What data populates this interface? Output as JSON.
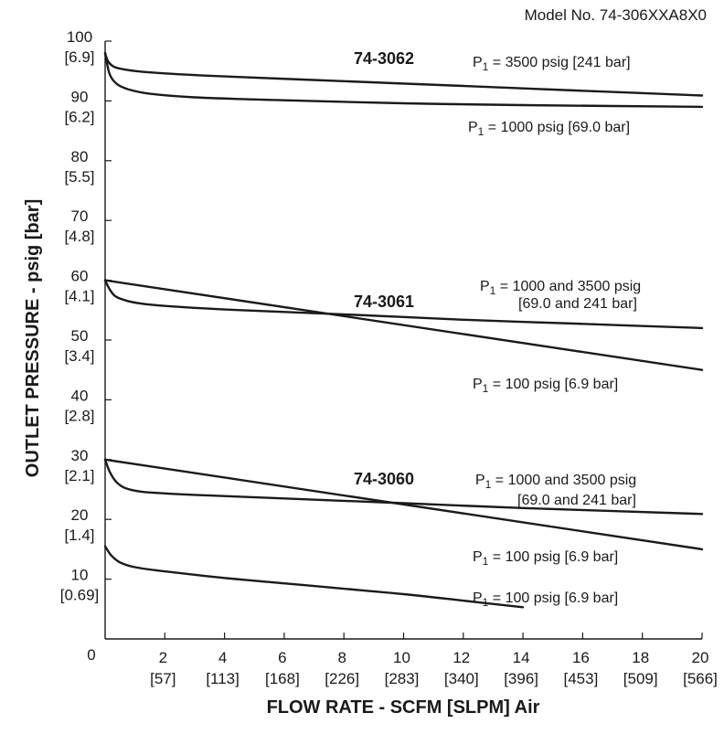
{
  "model_label": "Model No. 74-306XXA8X0",
  "chart_data": {
    "type": "line",
    "xlabel": "FLOW RATE - SCFM [SLPM] Air",
    "ylabel": "OUTLET PRESSURE - psig [bar]",
    "xlim": [
      0,
      20
    ],
    "ylim": [
      0,
      100
    ],
    "grid": false,
    "origin_label": "0",
    "x_ticks": [
      {
        "value": 2,
        "label": "2",
        "sub": "[57]"
      },
      {
        "value": 4,
        "label": "4",
        "sub": "[113]"
      },
      {
        "value": 6,
        "label": "6",
        "sub": "[168]"
      },
      {
        "value": 8,
        "label": "8",
        "sub": "[226]"
      },
      {
        "value": 10,
        "label": "10",
        "sub": "[283]"
      },
      {
        "value": 12,
        "label": "12",
        "sub": "[340]"
      },
      {
        "value": 14,
        "label": "14",
        "sub": "[396]"
      },
      {
        "value": 16,
        "label": "16",
        "sub": "[453]"
      },
      {
        "value": 18,
        "label": "18",
        "sub": "[509]"
      },
      {
        "value": 20,
        "label": "20",
        "sub": "[566]"
      }
    ],
    "y_ticks": [
      {
        "value": 10,
        "label": "10",
        "sub": "[0.69]"
      },
      {
        "value": 20,
        "label": "20",
        "sub": "[1.4]"
      },
      {
        "value": 30,
        "label": "30",
        "sub": "[2.1]"
      },
      {
        "value": 40,
        "label": "40",
        "sub": "[2.8]"
      },
      {
        "value": 50,
        "label": "50",
        "sub": "[3.4]"
      },
      {
        "value": 60,
        "label": "60",
        "sub": "[4.1]"
      },
      {
        "value": 70,
        "label": "70",
        "sub": "[4.8]"
      },
      {
        "value": 80,
        "label": "80",
        "sub": "[5.5]"
      },
      {
        "value": 90,
        "label": "90",
        "sub": "[6.2]"
      },
      {
        "value": 100,
        "label": "100",
        "sub": "[6.9]"
      }
    ],
    "groups": [
      {
        "name": "74-3062"
      },
      {
        "name": "74-3061"
      },
      {
        "name": "74-3060"
      }
    ],
    "series": [
      {
        "group": "74-3062",
        "name": "P1 = 3500 psig [241 bar]",
        "label_lines": [
          {
            "pre": "P",
            "sub": "1",
            "post": " = 3500 psig [241 bar]"
          }
        ],
        "points": [
          [
            0,
            98
          ],
          [
            0.1,
            96.6
          ],
          [
            0.3,
            95.7
          ],
          [
            0.6,
            95.3
          ],
          [
            1,
            95
          ],
          [
            2,
            94.6
          ],
          [
            4,
            94.1
          ],
          [
            8,
            93.3
          ],
          [
            12,
            92.5
          ],
          [
            16,
            91.7
          ],
          [
            20,
            90.9
          ]
        ]
      },
      {
        "group": "74-3062",
        "name": "P1 = 1000 psig [69.0 bar]",
        "label_lines": [
          {
            "pre": "P",
            "sub": "1",
            "post": " = 1000 psig [69.0 bar]"
          }
        ],
        "points": [
          [
            0,
            98
          ],
          [
            0.15,
            94.5
          ],
          [
            0.4,
            92.8
          ],
          [
            0.8,
            91.9
          ],
          [
            1.5,
            91.2
          ],
          [
            3,
            90.6
          ],
          [
            6,
            90.1
          ],
          [
            10,
            89.6
          ],
          [
            14,
            89.3
          ],
          [
            20,
            89
          ]
        ]
      },
      {
        "group": "74-3061",
        "name": "P1 = 1000 and 3500 psig [69.0 and 241 bar]",
        "label_lines": [
          {
            "pre": "P",
            "sub": "1",
            "post": " = 1000 and 3500 psig"
          },
          {
            "pre": "",
            "sub": "",
            "post": "[69.0 and 241 bar]"
          }
        ],
        "points": [
          [
            0,
            60
          ],
          [
            0.15,
            58.5
          ],
          [
            0.35,
            57.3
          ],
          [
            0.7,
            56.6
          ],
          [
            1.2,
            56.1
          ],
          [
            2,
            55.7
          ],
          [
            4,
            55.1
          ],
          [
            8,
            54.3
          ],
          [
            12,
            53.4
          ],
          [
            16,
            52.7
          ],
          [
            20,
            52
          ]
        ]
      },
      {
        "group": "74-3061",
        "name": "P1 = 100 psig [6.9 bar]",
        "label_lines": [
          {
            "pre": "P",
            "sub": "1",
            "post": " = 100 psig [6.9 bar]"
          }
        ],
        "points": [
          [
            0,
            60
          ],
          [
            20,
            45
          ]
        ]
      },
      {
        "group": "74-3060",
        "name": "P1 = 1000 and 3500 psig [69.0 and 241 bar]",
        "label_lines": [
          {
            "pre": "P",
            "sub": "1",
            "post": " = 1000 and 3500 psig"
          },
          {
            "pre": "",
            "sub": "",
            "post": "[69.0 and 241 bar]"
          }
        ],
        "points": [
          [
            0,
            30
          ],
          [
            0.15,
            28
          ],
          [
            0.35,
            26.4
          ],
          [
            0.6,
            25.4
          ],
          [
            1,
            24.8
          ],
          [
            1.5,
            24.5
          ],
          [
            3,
            24.1
          ],
          [
            6,
            23.5
          ],
          [
            10,
            22.7
          ],
          [
            14,
            21.9
          ],
          [
            20,
            20.9
          ]
        ]
      },
      {
        "group": "74-3060",
        "name": "P1 = 100 psig [6.9 bar]",
        "label_lines": [
          {
            "pre": "P",
            "sub": "1",
            "post": " = 100 psig [6.9 bar]"
          }
        ],
        "points": [
          [
            0,
            30
          ],
          [
            20,
            15
          ]
        ]
      },
      {
        "group": "74-3060",
        "name": "P1 = 100 psig [6.9 bar]",
        "label_lines": [
          {
            "pre": "P",
            "sub": "1",
            "post": " = 100 psig [6.9 bar]"
          }
        ],
        "points": [
          [
            0,
            15.5
          ],
          [
            0.2,
            14
          ],
          [
            0.5,
            12.8
          ],
          [
            1,
            12
          ],
          [
            2,
            11.3
          ],
          [
            4,
            10.2
          ],
          [
            6,
            9.3
          ],
          [
            8,
            8.4
          ],
          [
            10,
            7.5
          ],
          [
            12,
            6.4
          ],
          [
            14,
            5.3
          ]
        ]
      }
    ]
  }
}
